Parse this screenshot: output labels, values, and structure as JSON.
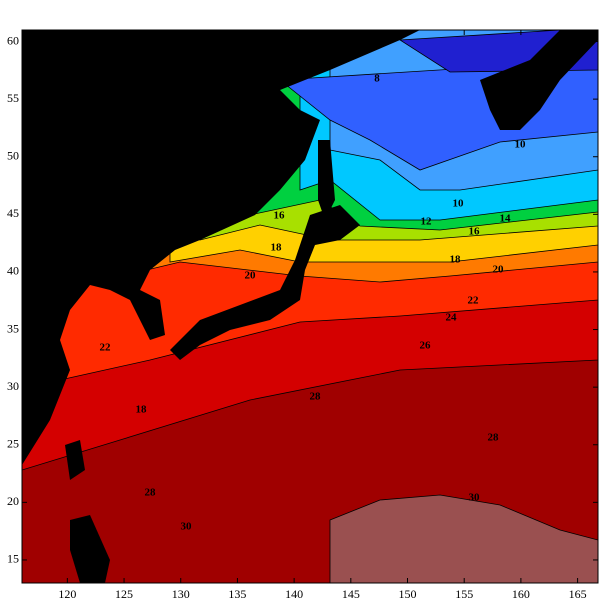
{
  "map": {
    "xlim": [
      116,
      166.8
    ],
    "ylim": [
      13,
      61
    ],
    "xticks": [
      120,
      125,
      130,
      135,
      140,
      145,
      150,
      155,
      160,
      165
    ],
    "yticks": [
      15,
      20,
      25,
      30,
      35,
      40,
      45,
      50,
      55,
      60
    ],
    "contour_labels": [
      "8",
      "10",
      "10",
      "12",
      "14",
      "16",
      "16",
      "18",
      "18",
      "20",
      "20",
      "22",
      "22",
      "24",
      "26",
      "28",
      "28",
      "28",
      "18",
      "30",
      "30"
    ]
  }
}
